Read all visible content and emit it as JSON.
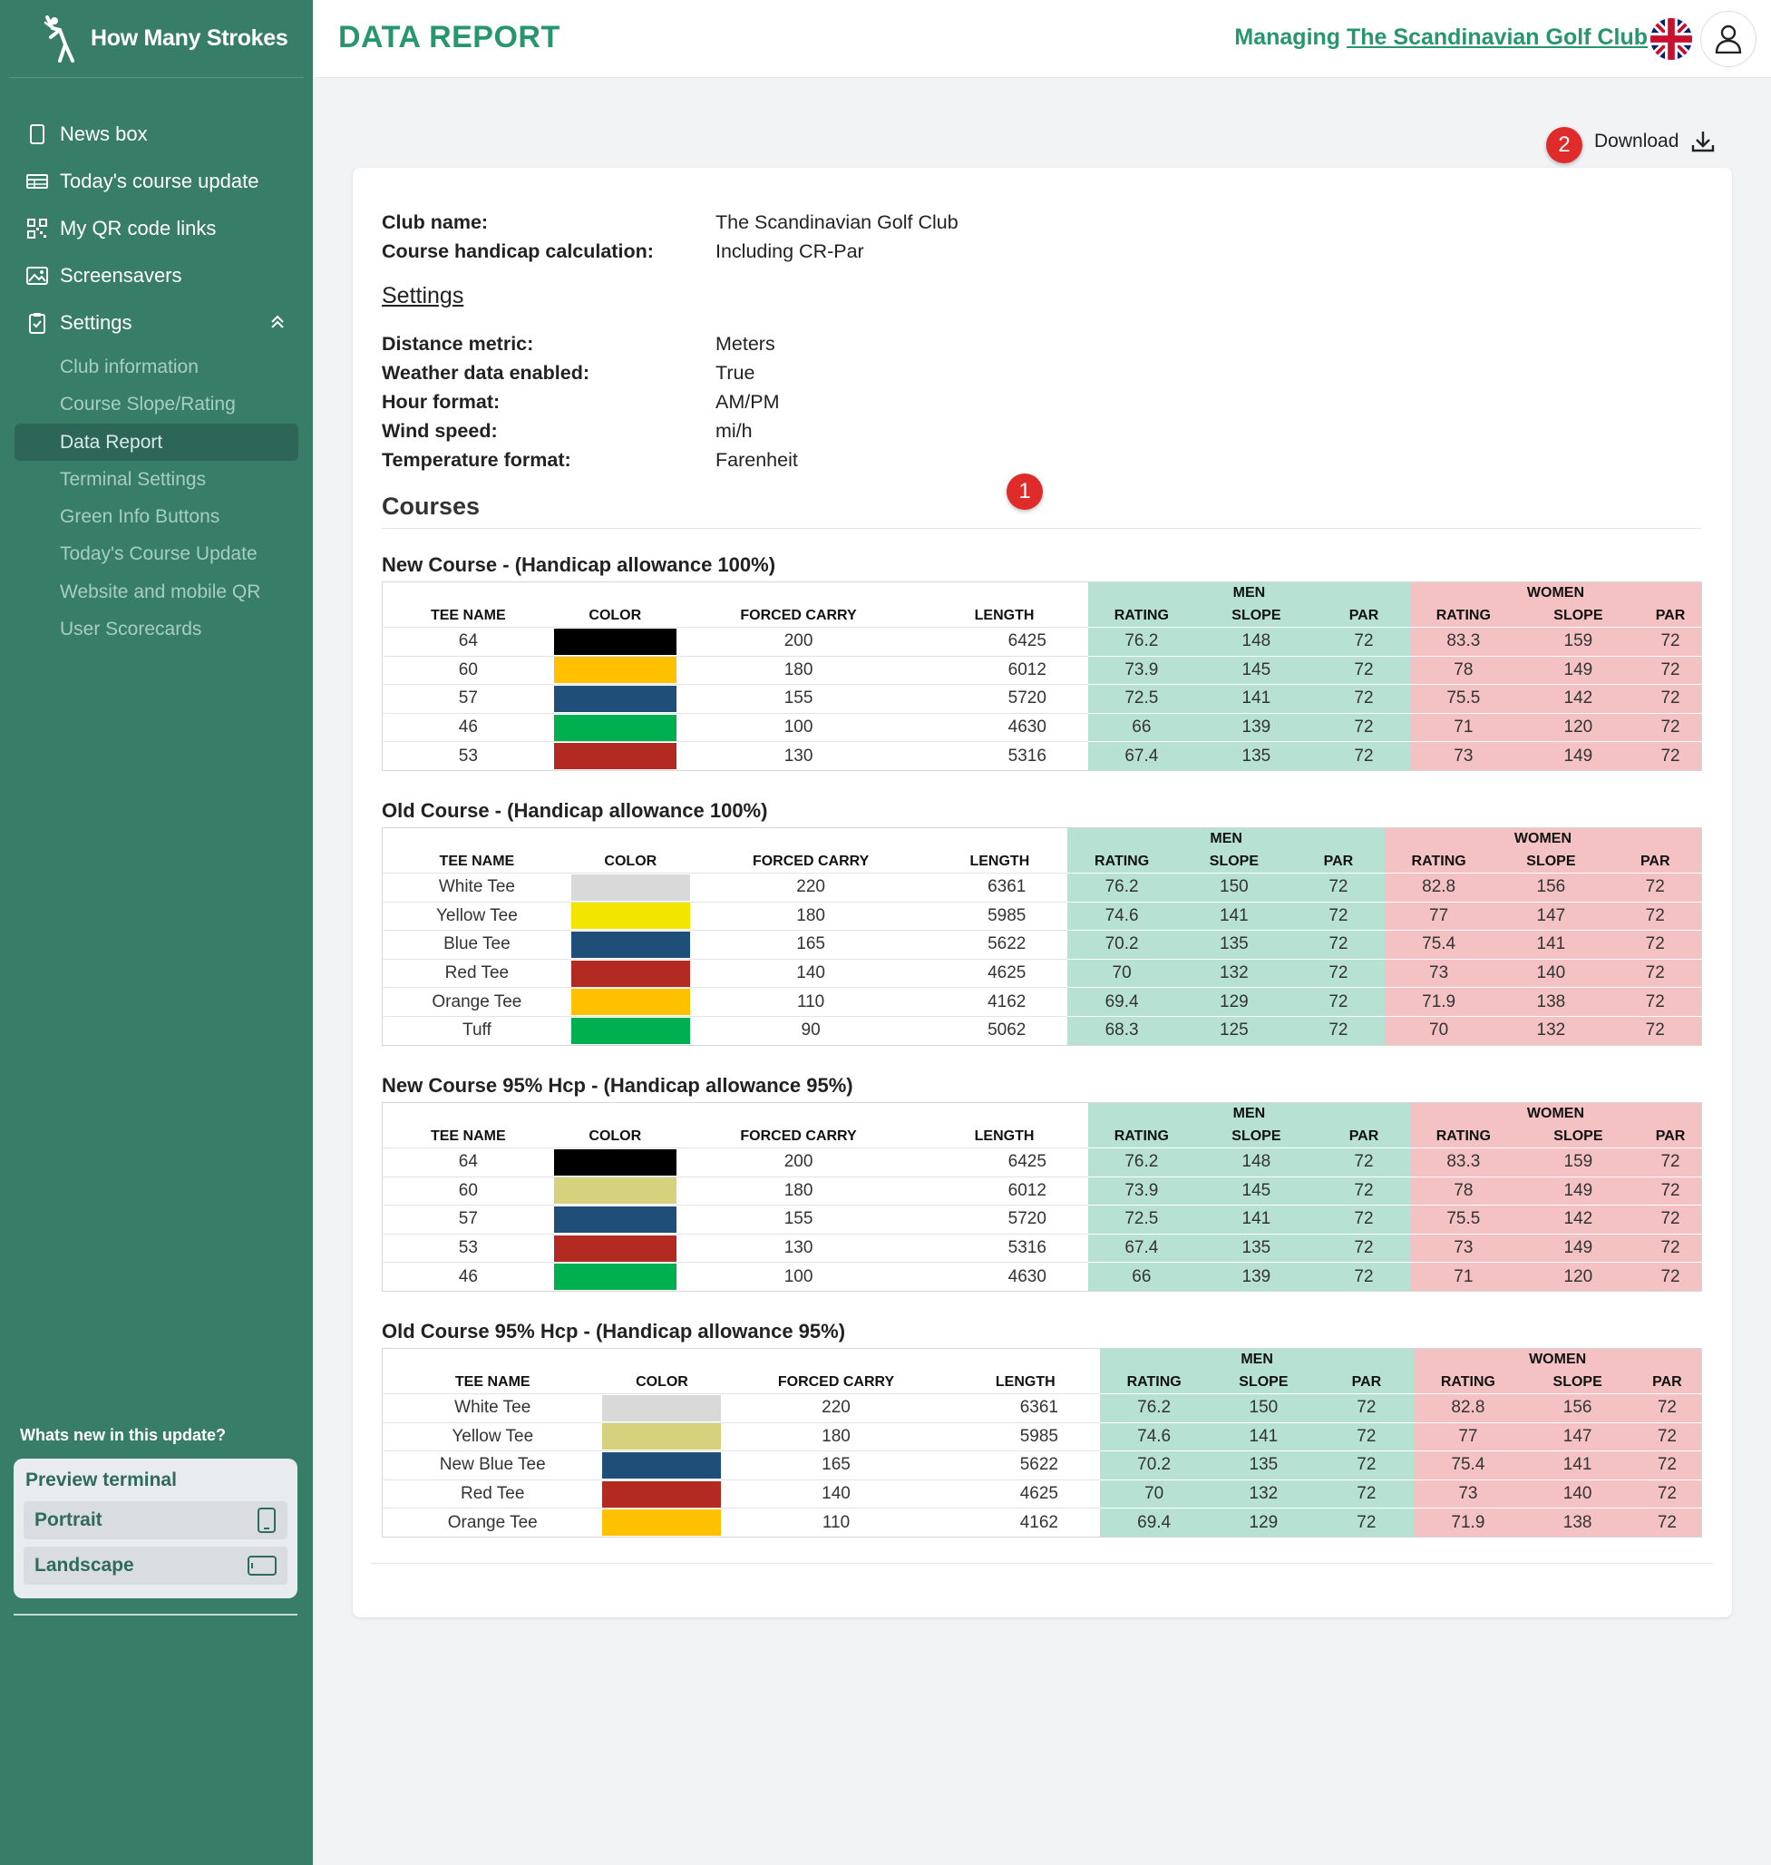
{
  "brand": {
    "name": "How Many Strokes"
  },
  "nav": {
    "items": [
      {
        "label": "News box",
        "icon": "tablet-icon"
      },
      {
        "label": "Today's course update",
        "icon": "table-icon"
      },
      {
        "label": "My QR code links",
        "icon": "qr-code-icon"
      },
      {
        "label": "Screensavers",
        "icon": "image-icon"
      },
      {
        "label": "Settings",
        "icon": "clipboard-icon"
      }
    ],
    "subitems": [
      "Club information",
      "Course Slope/Rating",
      "Data Report",
      "Terminal Settings",
      "Green Info Buttons",
      "Today's Course Update",
      "Website and mobile QR",
      "User Scorecards"
    ],
    "active_subitem": "Data Report"
  },
  "whats_new": "Whats new in this update?",
  "preview": {
    "title": "Preview terminal",
    "portrait": "Portrait",
    "landscape": "Landscape"
  },
  "header": {
    "title": "DATA REPORT",
    "managing_prefix": "Managing",
    "club_link": "The Scandinavian Golf Club"
  },
  "download": {
    "label": "Download"
  },
  "badges": {
    "one": "1",
    "two": "2"
  },
  "club": [
    {
      "k": "Club name:",
      "v": "The Scandinavian Golf Club"
    },
    {
      "k": "Course handicap calculation:",
      "v": "Including CR-Par"
    }
  ],
  "settings_title": "Settings",
  "settings": [
    {
      "k": "Distance metric:",
      "v": "Meters"
    },
    {
      "k": "Weather data enabled:",
      "v": "True"
    },
    {
      "k": "Hour format:",
      "v": "AM/PM"
    },
    {
      "k": "Wind speed:",
      "v": "mi/h"
    },
    {
      "k": "Temperature format:",
      "v": "Farenheit"
    }
  ],
  "courses_title": "Courses",
  "table_headers": {
    "tee_name": "TEE NAME",
    "color": "COLOR",
    "forced_carry": "FORCED CARRY",
    "length": "LENGTH",
    "men": "MEN",
    "women": "WOMEN",
    "rating": "RATING",
    "slope": "SLOPE",
    "par": "PAR"
  },
  "colors": {
    "black": "#000000",
    "amber": "#ffc000",
    "blue": "#1f4e79",
    "green": "#00b050",
    "red": "#b22a22",
    "lightgray": "#d9d9d9",
    "yellow": "#f2e600",
    "khaki": "#d5d17d",
    "men_bg": "#b7e2d3",
    "women_bg": "#f5c2c4",
    "accent": "#27956e",
    "sidebar": "#377d68"
  },
  "courses": [
    {
      "title": "New Course - (Handicap allowance 100%)",
      "rows": [
        {
          "tee": "64",
          "color": "#000000",
          "carry": "200",
          "length": "6425",
          "m_rating": "76.2",
          "m_slope": "148",
          "m_par": "72",
          "w_rating": "83.3",
          "w_slope": "159",
          "w_par": "72"
        },
        {
          "tee": "60",
          "color": "#ffc000",
          "carry": "180",
          "length": "6012",
          "m_rating": "73.9",
          "m_slope": "145",
          "m_par": "72",
          "w_rating": "78",
          "w_slope": "149",
          "w_par": "72"
        },
        {
          "tee": "57",
          "color": "#1f4e79",
          "carry": "155",
          "length": "5720",
          "m_rating": "72.5",
          "m_slope": "141",
          "m_par": "72",
          "w_rating": "75.5",
          "w_slope": "142",
          "w_par": "72"
        },
        {
          "tee": "46",
          "color": "#00b050",
          "carry": "100",
          "length": "4630",
          "m_rating": "66",
          "m_slope": "139",
          "m_par": "72",
          "w_rating": "71",
          "w_slope": "120",
          "w_par": "72"
        },
        {
          "tee": "53",
          "color": "#b22a22",
          "carry": "130",
          "length": "5316",
          "m_rating": "67.4",
          "m_slope": "135",
          "m_par": "72",
          "w_rating": "73",
          "w_slope": "149",
          "w_par": "72"
        }
      ]
    },
    {
      "title": "Old Course - (Handicap allowance 100%)",
      "rows": [
        {
          "tee": "White Tee",
          "color": "#d9d9d9",
          "carry": "220",
          "length": "6361",
          "m_rating": "76.2",
          "m_slope": "150",
          "m_par": "72",
          "w_rating": "82.8",
          "w_slope": "156",
          "w_par": "72"
        },
        {
          "tee": "Yellow Tee",
          "color": "#f2e600",
          "carry": "180",
          "length": "5985",
          "m_rating": "74.6",
          "m_slope": "141",
          "m_par": "72",
          "w_rating": "77",
          "w_slope": "147",
          "w_par": "72"
        },
        {
          "tee": "Blue Tee",
          "color": "#1f4e79",
          "carry": "165",
          "length": "5622",
          "m_rating": "70.2",
          "m_slope": "135",
          "m_par": "72",
          "w_rating": "75.4",
          "w_slope": "141",
          "w_par": "72"
        },
        {
          "tee": "Red Tee",
          "color": "#b22a22",
          "carry": "140",
          "length": "4625",
          "m_rating": "70",
          "m_slope": "132",
          "m_par": "72",
          "w_rating": "73",
          "w_slope": "140",
          "w_par": "72"
        },
        {
          "tee": "Orange Tee",
          "color": "#ffc000",
          "carry": "110",
          "length": "4162",
          "m_rating": "69.4",
          "m_slope": "129",
          "m_par": "72",
          "w_rating": "71.9",
          "w_slope": "138",
          "w_par": "72"
        },
        {
          "tee": "Tuff",
          "color": "#00b050",
          "carry": "90",
          "length": "5062",
          "m_rating": "68.3",
          "m_slope": "125",
          "m_par": "72",
          "w_rating": "70",
          "w_slope": "132",
          "w_par": "72"
        }
      ]
    },
    {
      "title": "New Course 95% Hcp - (Handicap allowance 95%)",
      "rows": [
        {
          "tee": "64",
          "color": "#000000",
          "carry": "200",
          "length": "6425",
          "m_rating": "76.2",
          "m_slope": "148",
          "m_par": "72",
          "w_rating": "83.3",
          "w_slope": "159",
          "w_par": "72"
        },
        {
          "tee": "60",
          "color": "#d5d17d",
          "carry": "180",
          "length": "6012",
          "m_rating": "73.9",
          "m_slope": "145",
          "m_par": "72",
          "w_rating": "78",
          "w_slope": "149",
          "w_par": "72"
        },
        {
          "tee": "57",
          "color": "#1f4e79",
          "carry": "155",
          "length": "5720",
          "m_rating": "72.5",
          "m_slope": "141",
          "m_par": "72",
          "w_rating": "75.5",
          "w_slope": "142",
          "w_par": "72"
        },
        {
          "tee": "53",
          "color": "#b22a22",
          "carry": "130",
          "length": "5316",
          "m_rating": "67.4",
          "m_slope": "135",
          "m_par": "72",
          "w_rating": "73",
          "w_slope": "149",
          "w_par": "72"
        },
        {
          "tee": "46",
          "color": "#00b050",
          "carry": "100",
          "length": "4630",
          "m_rating": "66",
          "m_slope": "139",
          "m_par": "72",
          "w_rating": "71",
          "w_slope": "120",
          "w_par": "72"
        }
      ]
    },
    {
      "title": "Old Course 95% Hcp - (Handicap allowance 95%)",
      "rows": [
        {
          "tee": "White Tee",
          "color": "#d9d9d9",
          "carry": "220",
          "length": "6361",
          "m_rating": "76.2",
          "m_slope": "150",
          "m_par": "72",
          "w_rating": "82.8",
          "w_slope": "156",
          "w_par": "72"
        },
        {
          "tee": "Yellow Tee",
          "color": "#d5d17d",
          "carry": "180",
          "length": "5985",
          "m_rating": "74.6",
          "m_slope": "141",
          "m_par": "72",
          "w_rating": "77",
          "w_slope": "147",
          "w_par": "72"
        },
        {
          "tee": "New Blue Tee",
          "color": "#1f4e79",
          "carry": "165",
          "length": "5622",
          "m_rating": "70.2",
          "m_slope": "135",
          "m_par": "72",
          "w_rating": "75.4",
          "w_slope": "141",
          "w_par": "72"
        },
        {
          "tee": "Red Tee",
          "color": "#b22a22",
          "carry": "140",
          "length": "4625",
          "m_rating": "70",
          "m_slope": "132",
          "m_par": "72",
          "w_rating": "73",
          "w_slope": "140",
          "w_par": "72"
        },
        {
          "tee": "Orange Tee",
          "color": "#ffc000",
          "carry": "110",
          "length": "4162",
          "m_rating": "69.4",
          "m_slope": "129",
          "m_par": "72",
          "w_rating": "71.9",
          "w_slope": "138",
          "w_par": "72"
        }
      ]
    }
  ]
}
